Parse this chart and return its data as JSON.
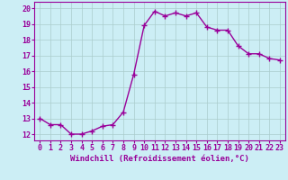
{
  "x": [
    0,
    1,
    2,
    3,
    4,
    5,
    6,
    7,
    8,
    9,
    10,
    11,
    12,
    13,
    14,
    15,
    16,
    17,
    18,
    19,
    20,
    21,
    22,
    23
  ],
  "y": [
    13.0,
    12.6,
    12.6,
    12.0,
    12.0,
    12.2,
    12.5,
    12.6,
    13.4,
    15.8,
    18.9,
    19.8,
    19.5,
    19.7,
    19.5,
    19.7,
    18.8,
    18.6,
    18.6,
    17.6,
    17.1,
    17.1,
    16.8,
    16.7
  ],
  "line_color": "#990099",
  "marker": "+",
  "marker_size": 4,
  "line_width": 1.0,
  "xlabel": "Windchill (Refroidissement éolien,°C)",
  "xlabel_fontsize": 6.5,
  "ylabel_ticks": [
    12,
    13,
    14,
    15,
    16,
    17,
    18,
    19,
    20
  ],
  "xtick_labels": [
    "0",
    "1",
    "2",
    "3",
    "4",
    "5",
    "6",
    "7",
    "8",
    "9",
    "10",
    "11",
    "12",
    "13",
    "14",
    "15",
    "16",
    "17",
    "18",
    "19",
    "20",
    "21",
    "22",
    "23"
  ],
  "ylim": [
    11.6,
    20.4
  ],
  "xlim": [
    -0.5,
    23.5
  ],
  "bg_color": "#cceef5",
  "grid_color": "#aacccc",
  "tick_fontsize": 6,
  "title": ""
}
